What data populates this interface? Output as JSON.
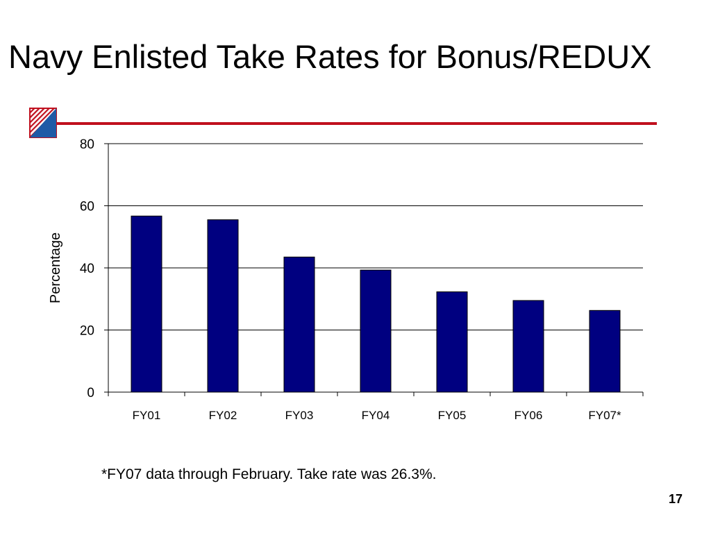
{
  "slide": {
    "title": "Navy Enlisted Take Rates for Bonus/REDUX",
    "footnote": "*FY07 data through February.  Take rate was 26.3%.",
    "page_number": "17",
    "accent_color": "#c0101e",
    "logo_icon": "striped-triangle-logo"
  },
  "chart_data": {
    "type": "bar",
    "title": "",
    "xlabel": "",
    "ylabel": "Percentage",
    "ylim": [
      0,
      80
    ],
    "yticks": [
      0,
      20,
      40,
      60,
      80
    ],
    "grid": true,
    "categories": [
      "FY01",
      "FY02",
      "FY03",
      "FY04",
      "FY05",
      "FY06",
      "FY07*"
    ],
    "values": [
      56.7,
      55.5,
      43.5,
      39.3,
      32.3,
      29.5,
      26.3
    ],
    "bar_color": "#000080"
  }
}
